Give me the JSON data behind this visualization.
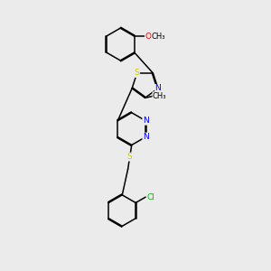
{
  "bg_color": "#ebebeb",
  "bond_color": "#000000",
  "N_color": "#0000ff",
  "S_color": "#cccc00",
  "O_color": "#ff0000",
  "Cl_color": "#00bb00",
  "font_size": 6.5,
  "bond_width": 1.1,
  "dbo": 0.06,
  "xlim": [
    0,
    10
  ],
  "ylim": [
    0,
    14
  ]
}
